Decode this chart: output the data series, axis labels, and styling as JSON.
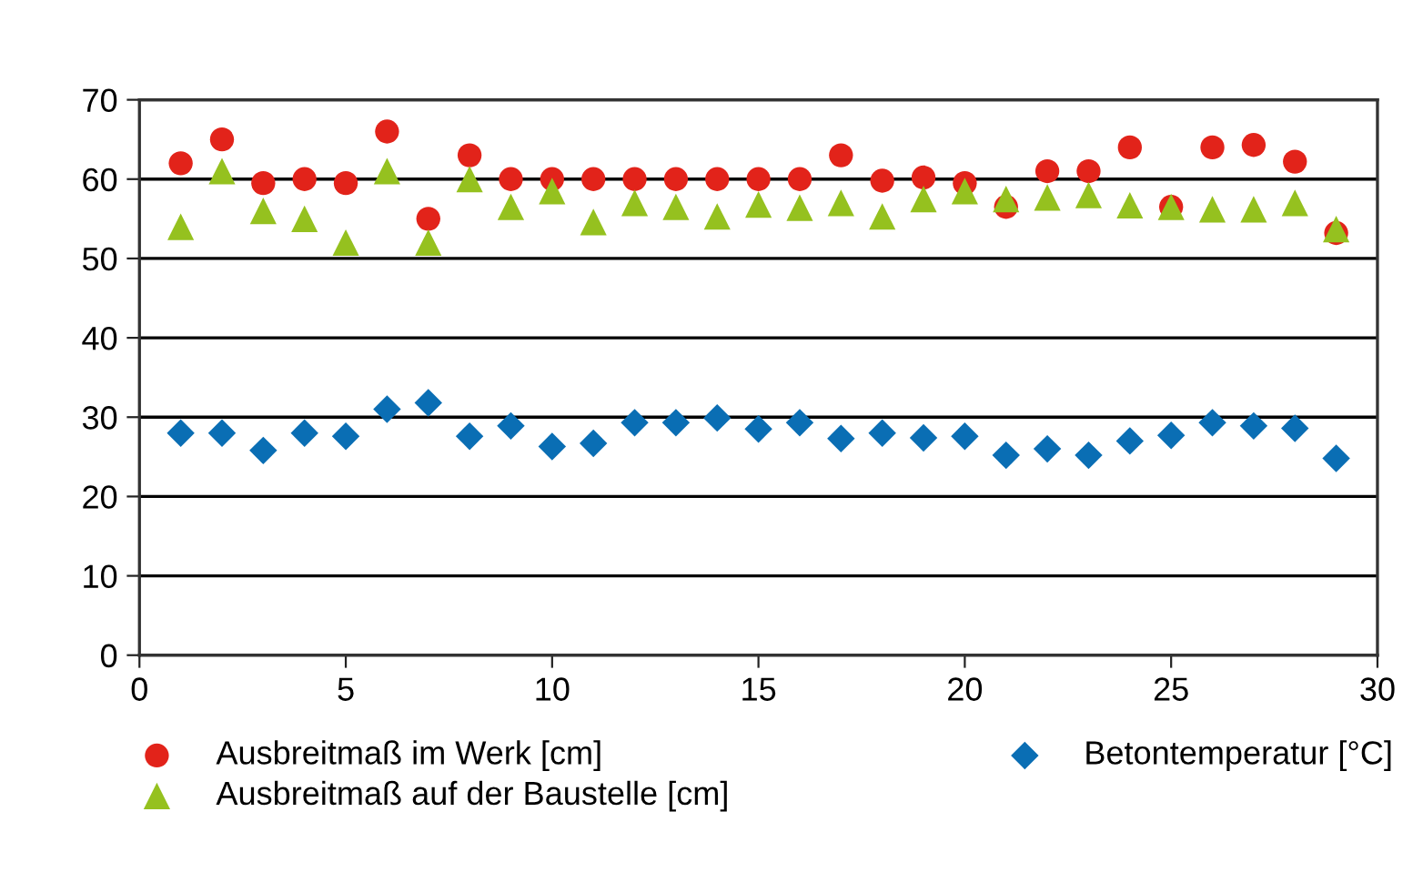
{
  "chart_data": {
    "type": "scatter",
    "x": [
      1,
      2,
      3,
      4,
      5,
      6,
      7,
      8,
      9,
      10,
      11,
      12,
      13,
      14,
      15,
      16,
      17,
      18,
      19,
      20,
      21,
      22,
      23,
      24,
      25,
      26,
      27,
      28,
      29
    ],
    "series": [
      {
        "name": "Ausbreitmaß im Werk [cm]",
        "color": "#e2231a",
        "marker": "circle",
        "values": [
          62,
          65,
          59.5,
          60,
          59.5,
          66,
          55,
          63,
          60,
          60,
          60,
          60,
          60,
          60,
          60,
          60,
          63,
          59.8,
          60.2,
          59.5,
          56.5,
          61,
          61,
          64,
          56.5,
          64,
          64.3,
          62.2,
          53.2
        ]
      },
      {
        "name": "Ausbreitmaß auf der Baustelle [cm]",
        "color": "#95c11f",
        "marker": "triangle",
        "values": [
          54,
          61,
          56,
          55,
          52,
          61,
          52,
          60,
          56.5,
          58.5,
          54.6,
          57,
          56.5,
          55.3,
          56.8,
          56.4,
          57,
          55.3,
          57.5,
          58.5,
          57.5,
          57.7,
          58,
          56.7,
          56.5,
          56.2,
          56.2,
          57,
          53.7
        ]
      },
      {
        "name": "Betontemperatur [°C]",
        "color": "#0a6eb4",
        "marker": "diamond",
        "values": [
          28,
          28,
          25.8,
          28,
          27.6,
          31,
          31.8,
          27.6,
          28.9,
          26.3,
          26.7,
          29.3,
          29.3,
          29.9,
          28.5,
          29.3,
          27.3,
          28,
          27.4,
          27.6,
          25.2,
          26,
          25.2,
          27,
          27.7,
          29.3,
          28.9,
          28.6,
          24.8
        ]
      }
    ],
    "xlim": [
      0,
      30
    ],
    "xticks": [
      0,
      5,
      10,
      15,
      20,
      25,
      30
    ],
    "ylim": [
      0,
      70
    ],
    "yticks": [
      0,
      10,
      20,
      30,
      40,
      50,
      60,
      70
    ],
    "grid": "y",
    "legend": "bottom"
  }
}
